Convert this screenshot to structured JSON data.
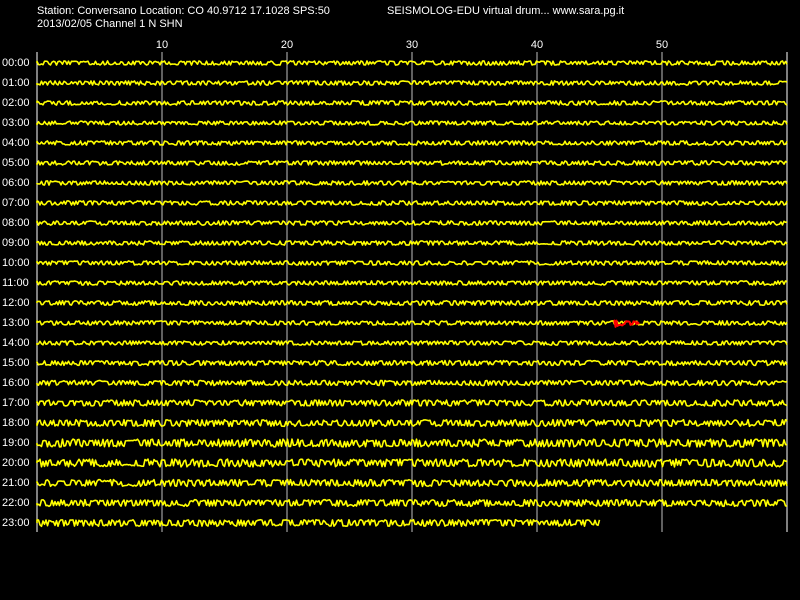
{
  "header": {
    "station_line": "Station: Conversano Location: CO 40.9712 17.1028 SPS:50",
    "date_channel_line": "2013/02/05  Channel 1 N SHN",
    "title_line": "SEISMOLOG-EDU virtual drum... www.sara.pg.it"
  },
  "minute_axis": {
    "ticks": [
      "10",
      "20",
      "30",
      "40",
      "50"
    ]
  },
  "hours": [
    "00:00",
    "01:00",
    "02:00",
    "03:00",
    "04:00",
    "05:00",
    "06:00",
    "07:00",
    "08:00",
    "09:00",
    "10:00",
    "11:00",
    "12:00",
    "13:00",
    "14:00",
    "15:00",
    "16:00",
    "17:00",
    "18:00",
    "19:00",
    "20:00",
    "21:00",
    "22:00",
    "23:00"
  ],
  "colors": {
    "background": "#000000",
    "trace": "#ffff00",
    "event": "#ff0000",
    "grid": "#c0c0c0",
    "text": "#ffffff"
  },
  "recording": {
    "minutes_per_line": 60,
    "last_line_end_minute": 45,
    "trace_amplitude_by_hour": [
      1.4,
      1.4,
      1.4,
      1.3,
      1.4,
      1.4,
      1.4,
      1.4,
      1.4,
      1.4,
      1.4,
      1.4,
      1.5,
      1.4,
      1.4,
      1.6,
      1.7,
      2.0,
      2.2,
      2.6,
      2.6,
      2.3,
      2.2,
      2.2
    ],
    "events": [
      {
        "hour": "13:00",
        "start_minute": 46.2,
        "end_minute": 48.2
      }
    ]
  }
}
